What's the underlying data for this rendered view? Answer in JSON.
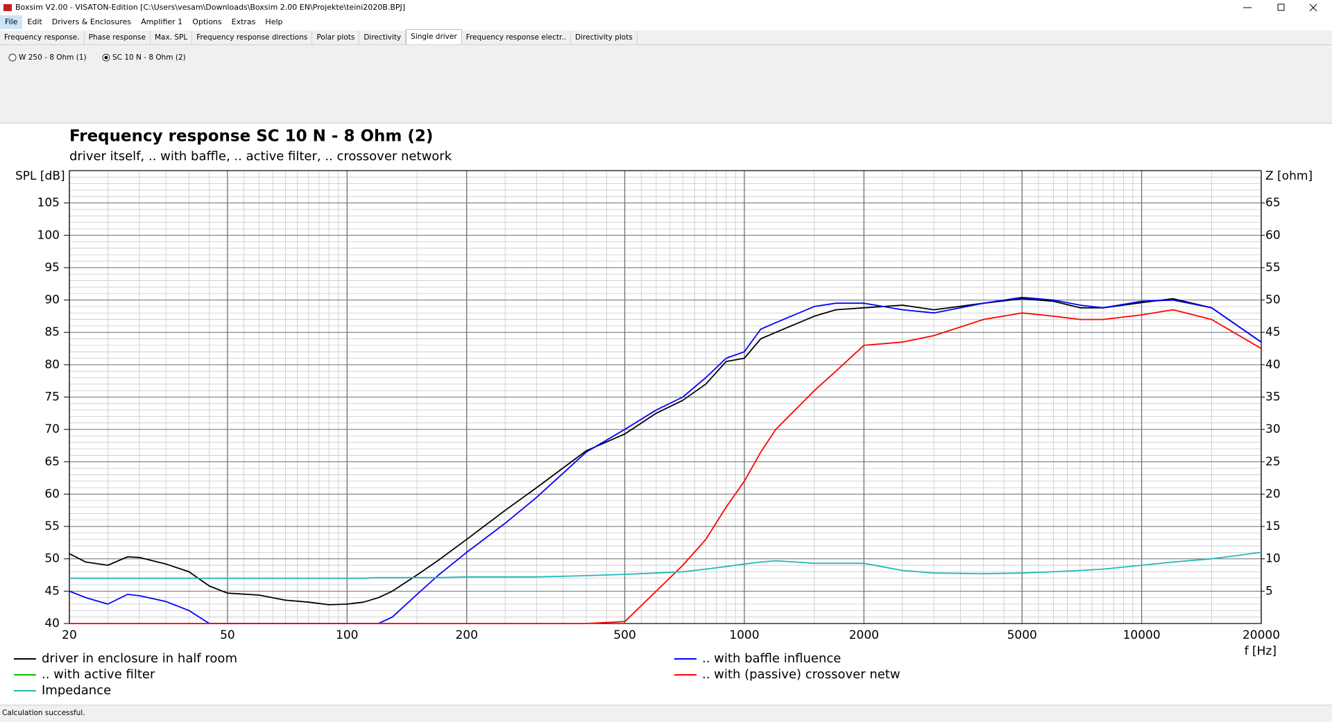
{
  "window": {
    "title": "Boxsim V2.00 - VISATON-Edition [C:\\Users\\vesam\\Downloads\\Boxsim 2.00 EN\\Projekte\\teini2020B.BPJ]",
    "menu": [
      "File",
      "Edit",
      "Drivers & Enclosures",
      "Amplifier 1",
      "Options",
      "Extras",
      "Help"
    ],
    "tabs": [
      "Frequency response.",
      "Phase response",
      "Max. SPL",
      "Frequency response directions",
      "Polar plots",
      "Directivity",
      "Single driver",
      "Frequency response electr..",
      "Directivity plots"
    ],
    "drivers": [
      "W 250 - 8 Ohm (1)",
      "SC 10 N - 8 Ohm (2)"
    ],
    "status": "Calculation successful."
  },
  "chart_data": {
    "type": "line",
    "title": "Frequency response SC 10 N - 8 Ohm (2)",
    "subtitle": "driver itself, .. with baffle, .. active filter, .. crossover network",
    "y_label": "SPL [dB]",
    "y2_label": "Z [ohm]",
    "x_label": "f [Hz]",
    "xscale": "log",
    "grid": true,
    "xlim": [
      20,
      20000
    ],
    "xticks": [
      20,
      50,
      100,
      200,
      500,
      1000,
      2000,
      5000,
      10000,
      20000
    ],
    "ylim": [
      40,
      110
    ],
    "yticks": [
      40,
      45,
      50,
      55,
      60,
      65,
      70,
      75,
      80,
      85,
      90,
      95,
      100,
      105
    ],
    "y2lim": [
      0,
      70
    ],
    "y2ticks": [
      5,
      10,
      15,
      20,
      25,
      30,
      35,
      40,
      45,
      50,
      55,
      60,
      65
    ],
    "x": [
      20,
      22,
      25,
      28,
      30,
      35,
      40,
      45,
      50,
      60,
      70,
      80,
      90,
      100,
      110,
      120,
      130,
      150,
      170,
      200,
      250,
      300,
      400,
      500,
      600,
      700,
      800,
      900,
      1000,
      1100,
      1200,
      1500,
      1700,
      2000,
      2500,
      3000,
      4000,
      5000,
      6000,
      7000,
      8000,
      10000,
      12000,
      15000,
      20000
    ],
    "series": [
      {
        "name": "driver in enclosure in half room",
        "color": "#000000",
        "values": [
          50.8,
          49.5,
          49.0,
          50.3,
          50.2,
          49.2,
          48.0,
          45.8,
          44.7,
          44.4,
          43.6,
          43.3,
          42.9,
          43.0,
          43.3,
          44.0,
          45.0,
          47.5,
          49.8,
          53.0,
          57.5,
          61.0,
          66.7,
          69.3,
          72.5,
          74.5,
          77.0,
          80.5,
          81.0,
          84.0,
          85.0,
          87.5,
          88.5,
          88.8,
          89.2,
          88.5,
          89.5,
          90.2,
          89.8,
          88.8,
          88.8,
          89.6,
          90.2,
          88.8,
          83.5
        ]
      },
      {
        "name": ".. with baffle influence",
        "color": "#0000ff",
        "values": [
          45.0,
          44.0,
          43.0,
          44.5,
          44.3,
          43.4,
          42.0,
          40.0,
          40.0,
          40.0,
          40.0,
          40.0,
          40.0,
          40.0,
          40.0,
          40.0,
          41.0,
          44.5,
          47.5,
          51.0,
          55.5,
          59.5,
          66.5,
          70.0,
          73.0,
          75.0,
          78.0,
          81.0,
          82.0,
          85.5,
          86.5,
          89.0,
          89.5,
          89.5,
          88.5,
          88.0,
          89.5,
          90.4,
          90.0,
          89.2,
          88.8,
          89.8,
          90.0,
          88.8,
          83.5
        ]
      },
      {
        "name": ".. with active filter",
        "color": "#00c000",
        "values": [
          null,
          null,
          null,
          null,
          null,
          null,
          null,
          null,
          null,
          null,
          null,
          null,
          null,
          null,
          null,
          null,
          null,
          null,
          null,
          null,
          null,
          null,
          null,
          null,
          null,
          null,
          null,
          null,
          null,
          null,
          null,
          null,
          null,
          null,
          null,
          null,
          null,
          null,
          null,
          null,
          null,
          null,
          null,
          null,
          null
        ]
      },
      {
        "name": ".. with (passive) crossover netw",
        "color": "#ff0000",
        "values": [
          40,
          40,
          40,
          40,
          40,
          40,
          40,
          40,
          40,
          40,
          40,
          40,
          40,
          40,
          40,
          40,
          40,
          40,
          40,
          40,
          40,
          40,
          40,
          40.3,
          45.0,
          49.0,
          53.0,
          58.0,
          62.0,
          66.5,
          70.0,
          76.0,
          79.0,
          83.0,
          83.5,
          84.5,
          87.0,
          88.0,
          87.5,
          87.0,
          87.0,
          87.7,
          88.5,
          87.0,
          82.5
        ]
      },
      {
        "name": "Impedance",
        "color": "#20b8b8",
        "axis": "y2",
        "values": [
          7.0,
          7.0,
          7.0,
          7.0,
          7.0,
          7.0,
          7.0,
          7.0,
          7.0,
          7.0,
          7.0,
          7.0,
          7.0,
          7.0,
          7.0,
          7.1,
          7.1,
          7.1,
          7.1,
          7.2,
          7.2,
          7.2,
          7.4,
          7.6,
          7.8,
          8.0,
          8.4,
          8.8,
          9.2,
          9.5,
          9.7,
          9.3,
          9.3,
          9.3,
          8.2,
          7.8,
          7.7,
          7.8,
          8.0,
          8.2,
          8.4,
          9.0,
          9.5,
          10.0,
          11.0
        ]
      }
    ]
  }
}
